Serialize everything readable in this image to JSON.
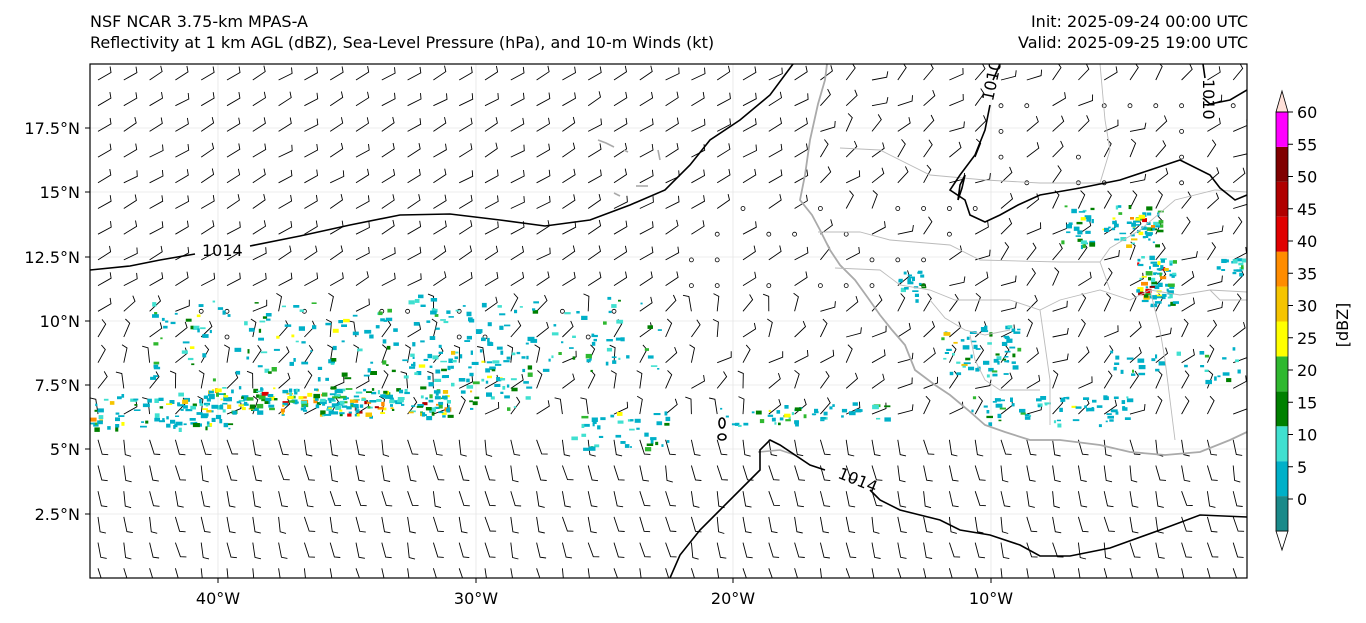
{
  "header": {
    "title_line1": "NSF NCAR 3.75-km MPAS-A",
    "title_line2": "Reflectivity at 1 km AGL (dBZ), Sea-Level Pressure (hPa), and 10-m Winds (kt)",
    "init": "Init: 2025-09-24 00:00 UTC",
    "valid": "Valid: 2025-09-25 19:00 UTC"
  },
  "axes": {
    "lat_labels": [
      "17.5°N",
      "15°N",
      "12.5°N",
      "10°N",
      "7.5°N",
      "5°N",
      "2.5°N"
    ],
    "lon_labels": [
      "40°W",
      "30°W",
      "20°W",
      "10°W"
    ]
  },
  "contours": {
    "labels": [
      "1014",
      "1010",
      "1010",
      "1014"
    ]
  },
  "colorbar": {
    "label": "[dBZ]",
    "ticks": [
      "0",
      "5",
      "10",
      "15",
      "20",
      "25",
      "30",
      "35",
      "40",
      "45",
      "50",
      "55",
      "60"
    ],
    "colors": [
      "#1a8a8a",
      "#00b0c8",
      "#40e0d0",
      "#008000",
      "#2fb82f",
      "#ffff00",
      "#f5c400",
      "#ff8c00",
      "#e00000",
      "#b00000",
      "#800000",
      "#ff00ff",
      "#ffe0d8"
    ]
  },
  "chart_data": {
    "type": "map",
    "title": "Reflectivity at 1 km AGL (dBZ), Sea-Level Pressure (hPa), and 10-m Winds (kt)",
    "lon_range": [
      -45,
      0
    ],
    "lat_range": [
      0,
      20
    ],
    "isobars_hPa": [
      1014,
      1010
    ],
    "reflectivity_levels_dBZ": [
      0,
      5,
      10,
      15,
      20,
      25,
      30,
      35,
      40,
      45,
      50,
      55,
      60
    ]
  }
}
